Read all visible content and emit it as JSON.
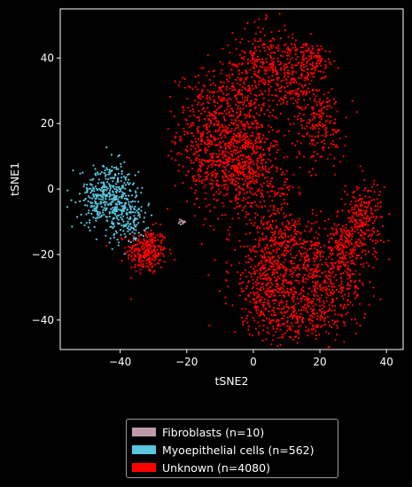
{
  "chart_data": {
    "type": "scatter",
    "title": "",
    "xlabel": "tSNE2",
    "ylabel": "tSNE1",
    "xlim": [
      -58,
      45
    ],
    "ylim": [
      -49,
      55
    ],
    "xticks": [
      -40,
      -20,
      0,
      20,
      40
    ],
    "yticks": [
      -40,
      -20,
      0,
      20,
      40
    ],
    "grid": false,
    "legend_position": "bottom-center",
    "background": "#000000",
    "series": [
      {
        "name": "Fibroblasts (n=10)",
        "color": "#bc9bab",
        "count": 10,
        "points": [
          [
            -22,
            -10
          ],
          [
            -21,
            -10.2
          ],
          [
            -21.5,
            -9.6
          ],
          [
            -22.4,
            -10.4
          ],
          [
            -20.8,
            -9.8
          ],
          [
            -21.2,
            -10.6
          ],
          [
            -22.1,
            -9.3
          ],
          [
            -20.5,
            -10.1
          ],
          [
            -21.8,
            -10.8
          ],
          [
            -21.4,
            -9.9
          ]
        ]
      },
      {
        "name": "Myoepithelial cells (n=562)",
        "color": "#5ac6df",
        "count": 562,
        "clusters": [
          {
            "cx": -43.5,
            "cy": -2,
            "sx": 4.2,
            "sy": 4.8,
            "n": 420
          },
          {
            "cx": -37.5,
            "cy": -9,
            "sx": 2.8,
            "sy": 4,
            "n": 142
          }
        ]
      },
      {
        "name": "Unknown (n=4080)",
        "color": "#ff0000",
        "count": 4080,
        "clusters": [
          {
            "cx": -32,
            "cy": -19,
            "sx": 3,
            "sy": 3.5,
            "n": 280
          },
          {
            "cx": -13,
            "cy": 18,
            "sx": 5,
            "sy": 9,
            "n": 420
          },
          {
            "cx": -4,
            "cy": 14,
            "sx": 5,
            "sy": 12,
            "n": 420
          },
          {
            "cx": 3,
            "cy": 38,
            "sx": 4.5,
            "sy": 6,
            "n": 280
          },
          {
            "cx": -8,
            "cy": 5,
            "sx": 6,
            "sy": 6,
            "n": 220
          },
          {
            "cx": 0,
            "cy": 10,
            "sx": 4,
            "sy": 8,
            "n": 200
          },
          {
            "cx": 13,
            "cy": 32,
            "sx": 3,
            "sy": 6,
            "n": 170
          },
          {
            "cx": 20,
            "cy": 20,
            "sx": 4,
            "sy": 6,
            "n": 200
          },
          {
            "cx": 19,
            "cy": 39,
            "sx": 2.5,
            "sy": 2.5,
            "n": 80
          },
          {
            "cx": 14,
            "cy": 43,
            "sx": 2.5,
            "sy": 1.5,
            "n": 40
          },
          {
            "cx": 8,
            "cy": 0,
            "sx": 3,
            "sy": 2,
            "n": 40
          },
          {
            "cx": 5,
            "cy": -28,
            "sx": 6,
            "sy": 8,
            "n": 480
          },
          {
            "cx": 20,
            "cy": -30,
            "sx": 7,
            "sy": 7,
            "n": 480
          },
          {
            "cx": 33,
            "cy": -9,
            "sx": 3,
            "sy": 6,
            "n": 250
          },
          {
            "cx": 10,
            "cy": -15,
            "sx": 5,
            "sy": 5,
            "n": 200
          },
          {
            "cx": 13,
            "cy": -40,
            "sx": 7,
            "sy": 3,
            "n": 150
          },
          {
            "cx": 27,
            "cy": -18,
            "sx": 3,
            "sy": 4,
            "n": 170
          }
        ]
      }
    ]
  },
  "legend": {
    "items": [
      {
        "label": "Fibroblasts (n=10)",
        "color": "#bc9bab"
      },
      {
        "label": "Myoepithelial cells (n=562)",
        "color": "#5ac6df"
      },
      {
        "label": "Unknown (n=4080)",
        "color": "#ff0000"
      }
    ]
  }
}
